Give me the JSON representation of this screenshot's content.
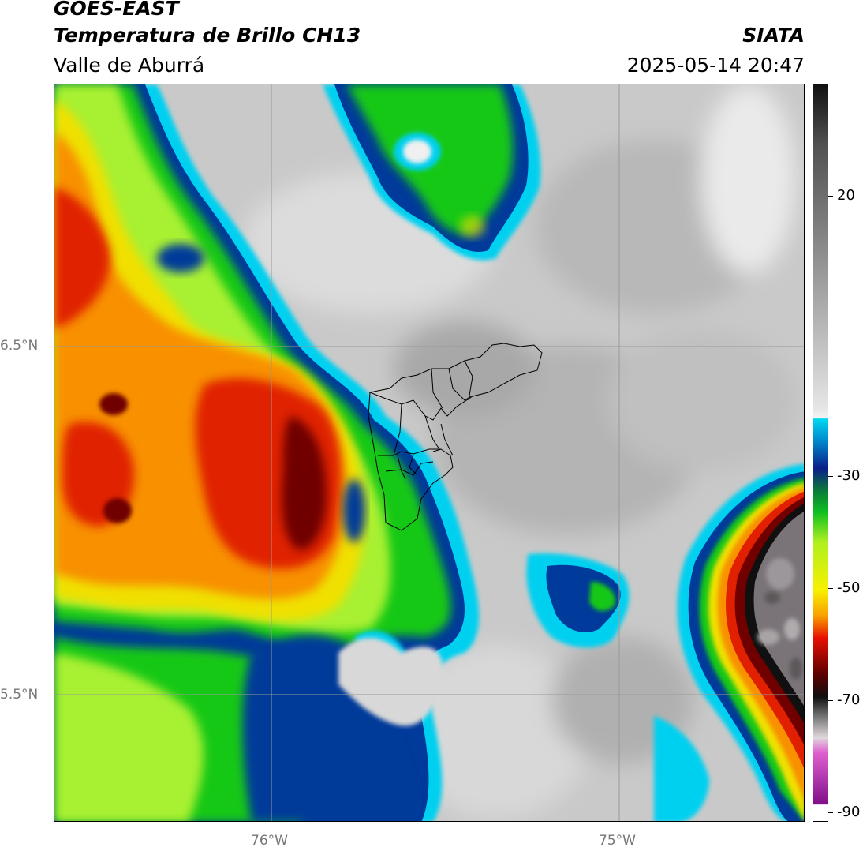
{
  "header": {
    "line1": "GOES-EAST",
    "line2": "Temperatura de Brillo CH13",
    "line3": "Valle de Aburrá",
    "org": "SIATA",
    "datetime": "2025-05-14 20:47"
  },
  "axes": {
    "lat_labels": [
      "6.5°N",
      "5.5°N"
    ],
    "lon_labels": [
      "76°W",
      "75°W"
    ]
  },
  "colorbar": {
    "tick_labels": [
      "20",
      "-30",
      "-50",
      "-70",
      "-90"
    ],
    "colors": {
      "warm_gray": "#8a8a8a",
      "light_gray": "#e6e6e6",
      "cyan": "#00d8f0",
      "dark_blue": "#0a1f8a",
      "green": "#10c020",
      "lime": "#b0f020",
      "yellow": "#f8f000",
      "orange": "#f8a000",
      "red": "#e81000",
      "dark_red": "#5a0000",
      "black": "#101010",
      "magenta": "#e060d0",
      "purple": "#80108a"
    }
  },
  "map": {
    "colors": {
      "background_gray": "#c8c8c8",
      "cloud_edge_cyan": "#00d0f0",
      "cloud_blue": "#003a9a",
      "cloud_green": "#18c818",
      "cloud_lime": "#a8f030",
      "cloud_yellow": "#f0e000",
      "cloud_orange": "#f89000",
      "cloud_red": "#e02000",
      "cloud_core": "#700000",
      "overshoot_gray": "#7a7478",
      "gridline": "#999999",
      "boundary": "#000000"
    }
  }
}
